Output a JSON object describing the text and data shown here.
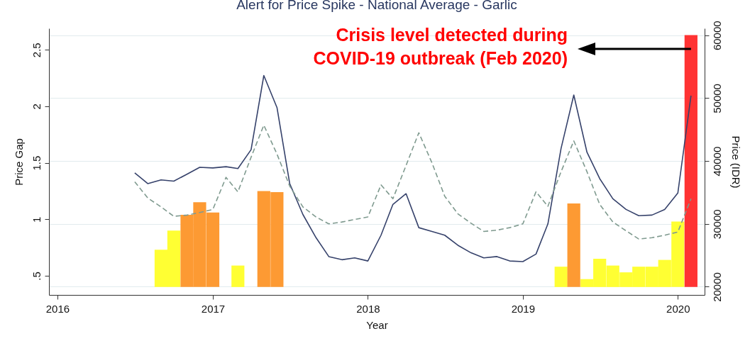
{
  "chart_data": {
    "type": "bar",
    "title": "Alert for Price Spike - National Average - Garlic",
    "xlabel": "Year",
    "ylabel": "Price Gap",
    "y2label": "Price (IDR)",
    "annotations": [
      "Crisis level detected during\nCOVID-19 outbreak (Feb 2020)"
    ],
    "xlim": [
      "2015-12-12",
      "2020-03-04"
    ],
    "xticks": [
      "2016",
      "2017",
      "2018",
      "2019",
      "2020"
    ],
    "ylim": [
      0.33,
      2.69
    ],
    "yticks": [
      {
        "value": 0.5,
        "label": ".5"
      },
      1,
      1.5,
      2,
      2.5
    ],
    "y2lim": [
      18700,
      61100
    ],
    "y2ticks": [
      20000,
      30000,
      40000,
      50000,
      60000
    ],
    "grid": "y2",
    "series": [
      {
        "x": [
          "2016-09",
          "2016-10",
          "2016-11",
          "2016-12",
          "2017-01",
          "2017-03",
          "2017-05",
          "2017-06",
          "2019-04",
          "2019-05",
          "2019-06",
          "2019-07",
          "2019-08",
          "2019-09",
          "2019-10",
          "2019-11",
          "2019-12",
          "2020-01",
          "2020-02"
        ],
        "values": [
          0.33,
          0.5,
          0.64,
          0.75,
          0.66,
          0.19,
          0.85,
          0.84,
          0.18,
          0.74,
          0.07,
          0.25,
          0.19,
          0.13,
          0.18,
          0.18,
          0.24,
          0.58,
          2.23
        ],
        "base": [
          0.4,
          0.4,
          0.4,
          0.4,
          0.4,
          0.4,
          0.4,
          0.4,
          0.4,
          0.4,
          0.4,
          0.4,
          0.4,
          0.4,
          0.4,
          0.4,
          0.4,
          0.4,
          0.4
        ],
        "colors": [
          "#ffff33",
          "#ffff33",
          "#fd9a33",
          "#fd9a33",
          "#fd9a33",
          "#ffff33",
          "#fd9a33",
          "#fd9a33",
          "#ffff33",
          "#fd9a33",
          "#ffff33",
          "#ffff33",
          "#ffff33",
          "#ffff33",
          "#ffff33",
          "#ffff33",
          "#ffff33",
          "#ffff33",
          "#ff3333"
        ]
      },
      {
        "type": "line",
        "axis": "y2",
        "color": "#36426b",
        "line_style": "solid",
        "x": [
          "2016-07",
          "2016-08",
          "2016-09",
          "2016-10",
          "2016-11",
          "2016-12",
          "2017-01",
          "2017-02",
          "2017-03",
          "2017-04",
          "2017-05",
          "2017-06",
          "2017-07",
          "2017-08",
          "2017-09",
          "2017-10",
          "2017-11",
          "2017-12",
          "2018-01",
          "2018-02",
          "2018-03",
          "2018-04",
          "2018-05",
          "2018-06",
          "2018-07",
          "2018-08",
          "2018-09",
          "2018-10",
          "2018-11",
          "2018-12",
          "2019-01",
          "2019-02",
          "2019-03",
          "2019-04",
          "2019-05",
          "2019-06",
          "2019-07",
          "2019-08",
          "2019-09",
          "2019-10",
          "2019-11",
          "2019-12",
          "2020-01",
          "2020-02"
        ],
        "values": [
          38100,
          36400,
          37000,
          36800,
          37900,
          39000,
          38900,
          39100,
          38800,
          41800,
          53600,
          48500,
          36400,
          31500,
          27800,
          24800,
          24300,
          24600,
          24100,
          28200,
          33100,
          34800,
          29400,
          28800,
          28200,
          26600,
          25400,
          24600,
          24800,
          24100,
          24000,
          25200,
          30000,
          42000,
          50500,
          41400,
          37200,
          34000,
          32300,
          31300,
          31400,
          32300,
          34900,
          50400
        ]
      },
      {
        "type": "line",
        "axis": "y2",
        "color": "#7f9a8f",
        "line_style": "dashed",
        "x": [
          "2016-07",
          "2016-08",
          "2016-09",
          "2016-10",
          "2016-11",
          "2016-12",
          "2017-01",
          "2017-02",
          "2017-03",
          "2017-04",
          "2017-05",
          "2017-06",
          "2017-07",
          "2017-08",
          "2017-09",
          "2017-10",
          "2017-11",
          "2017-12",
          "2018-01",
          "2018-02",
          "2018-03",
          "2018-04",
          "2018-05",
          "2018-06",
          "2018-07",
          "2018-08",
          "2018-09",
          "2018-10",
          "2018-11",
          "2018-12",
          "2019-01",
          "2019-02",
          "2019-03",
          "2019-04",
          "2019-05",
          "2019-06",
          "2019-07",
          "2019-08",
          "2019-09",
          "2019-10",
          "2019-11",
          "2019-12",
          "2020-01",
          "2020-02"
        ],
        "values": [
          36700,
          34100,
          32700,
          31200,
          31400,
          31800,
          32300,
          37400,
          35100,
          40600,
          45700,
          41100,
          36000,
          32700,
          31100,
          30000,
          30300,
          30700,
          31100,
          36200,
          34000,
          39300,
          44500,
          39700,
          34400,
          31600,
          30100,
          28800,
          29000,
          29400,
          30000,
          35100,
          32800,
          38300,
          43200,
          38300,
          33100,
          30300,
          28900,
          27600,
          27800,
          28200,
          28700,
          34000
        ]
      }
    ]
  }
}
